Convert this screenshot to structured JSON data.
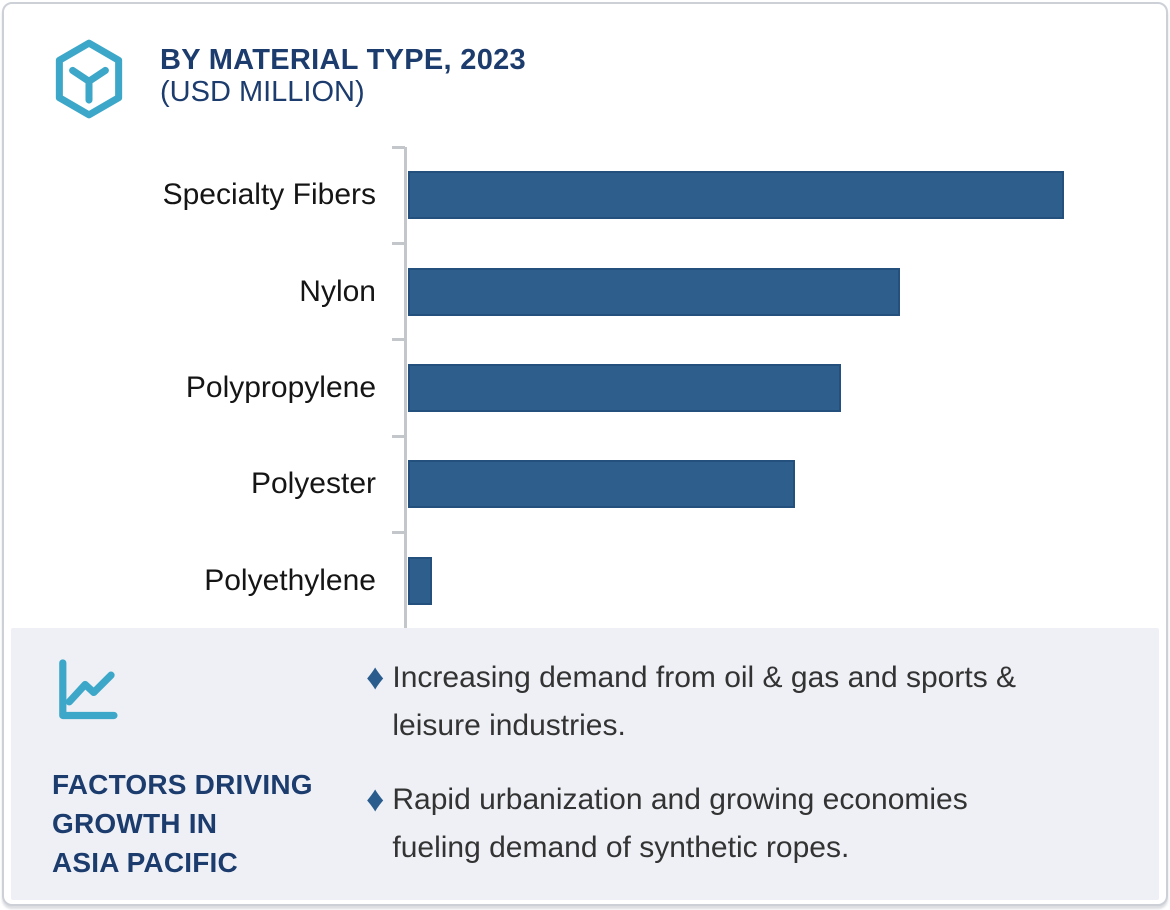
{
  "header": {
    "title_line1": "BY MATERIAL TYPE, 2023",
    "title_line2": "(USD MILLION)"
  },
  "chart_data": {
    "type": "bar",
    "orientation": "horizontal",
    "title": "BY MATERIAL TYPE, 2023 (USD MILLION)",
    "categories": [
      "Specialty Fibers",
      "Nylon",
      "Polypropylene",
      "Polyester",
      "Polyethylene"
    ],
    "values": [
      656,
      492,
      433,
      387,
      24
    ],
    "value_units": "estimated relative units (no numeric axis shown)",
    "xlabel": "",
    "ylabel": "",
    "xlim": [
      0,
      757
    ],
    "grid": false,
    "legend": false,
    "bar_color": "#2e5e8c",
    "bar_border_color": "#24507e",
    "axis_color": "#c3c6ca"
  },
  "factors": {
    "title": "FACTORS DRIVING\nGROWTH IN\nASIA PACIFIC",
    "bullets": [
      "Increasing demand from oil & gas and sports &\nleisure industries.",
      "Rapid urbanization and growing economies\nfueling demand of synthetic ropes."
    ],
    "bullet_marker": "♦"
  },
  "icons": {
    "logo": "hexagon-cube-icon",
    "factors": "line-chart-icon"
  },
  "colors": {
    "accent_teal": "#3ca7c8",
    "navy": "#1c3c6e",
    "bar": "#2e5e8c",
    "bar_border": "#24507e",
    "panel_bg": "#eef0f5",
    "axis": "#c3c6ca",
    "body_text": "#333333",
    "category_label": "#151515",
    "card_border": "#cdd1d7"
  }
}
